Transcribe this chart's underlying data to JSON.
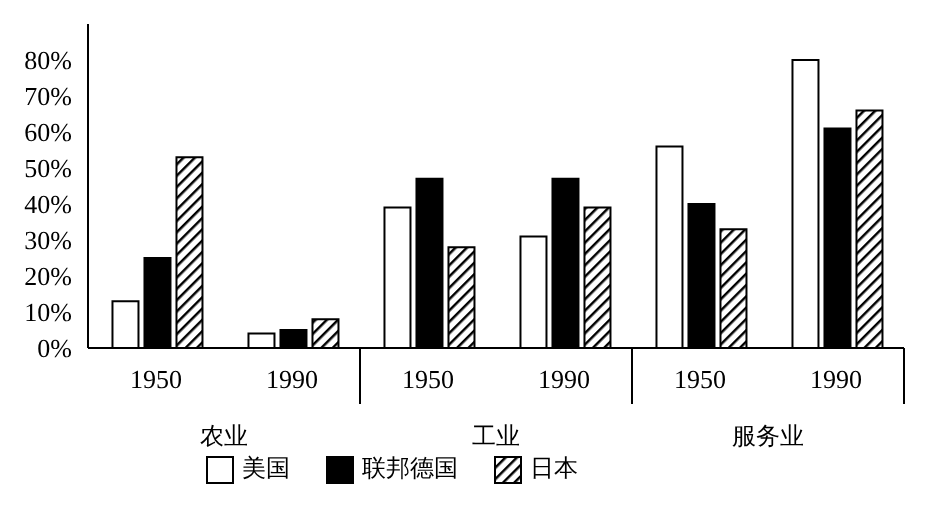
{
  "chart_data": {
    "type": "bar",
    "categories": [
      "1950",
      "1990",
      "1950",
      "1990",
      "1950",
      "1990"
    ],
    "series": [
      {
        "name": "美国",
        "color": "#ffffff",
        "values": [
          13,
          4,
          39,
          31,
          56,
          80
        ]
      },
      {
        "name": "联邦德国",
        "color": "#000000",
        "values": [
          25,
          5,
          47,
          47,
          40,
          61
        ]
      },
      {
        "name": "日本",
        "color": "#000000",
        "values": [
          53,
          8,
          28,
          39,
          33,
          66
        ]
      }
    ],
    "ylim": [
      0,
      90
    ],
    "yticks": [
      {
        "value": 0,
        "label": "0%"
      },
      {
        "value": 10,
        "label": "10%"
      },
      {
        "value": 20,
        "label": "20%"
      },
      {
        "value": 30,
        "label": "30%"
      },
      {
        "value": 40,
        "label": "40%"
      },
      {
        "value": 50,
        "label": "50%"
      },
      {
        "value": 60,
        "label": "60%"
      },
      {
        "value": 70,
        "label": "70%"
      },
      {
        "value": 80,
        "label": "80%"
      }
    ],
    "annotations": [
      "农业",
      "工业",
      "服务业"
    ],
    "grid": false,
    "legend": "bottom"
  }
}
